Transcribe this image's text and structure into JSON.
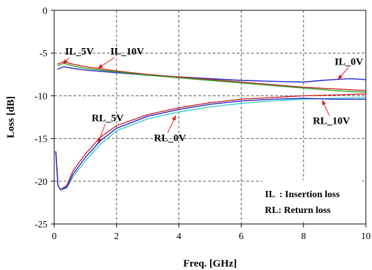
{
  "chart_data": {
    "type": "line",
    "xlabel": "Freq. [GHz]",
    "ylabel": "Loss [dB]",
    "xlim": [
      0,
      10
    ],
    "ylim": [
      -25,
      0
    ],
    "xticks": [
      0,
      2,
      4,
      6,
      8,
      10
    ],
    "yticks": [
      0,
      -5,
      -10,
      -15,
      -20,
      -25
    ],
    "grid": "dashed",
    "series": [
      {
        "name": "IL_0V",
        "color": "#2222cc",
        "x": [
          0.1,
          0.3,
          0.6,
          1,
          2,
          3,
          4,
          5,
          6,
          7,
          8,
          8.6,
          9,
          9.5,
          10
        ],
        "y": [
          -6.9,
          -6.6,
          -6.8,
          -7.0,
          -7.3,
          -7.6,
          -7.8,
          -8.0,
          -8.2,
          -8.3,
          -8.4,
          -8.2,
          -8.1,
          -8.0,
          -8.1
        ]
      },
      {
        "name": "IL_5V",
        "color": "#cc2222",
        "x": [
          0.1,
          0.3,
          0.6,
          1,
          2,
          3,
          4,
          5,
          6,
          7,
          8,
          9,
          10
        ],
        "y": [
          -6.3,
          -6.0,
          -6.3,
          -6.6,
          -7.1,
          -7.5,
          -7.8,
          -8.1,
          -8.4,
          -8.7,
          -9.0,
          -9.2,
          -9.4
        ]
      },
      {
        "name": "IL_10V",
        "color": "#22aa22",
        "x": [
          0.1,
          0.3,
          0.6,
          1,
          2,
          3,
          4,
          5,
          6,
          7,
          8,
          9,
          10
        ],
        "y": [
          -6.5,
          -6.2,
          -6.5,
          -6.8,
          -7.2,
          -7.6,
          -7.9,
          -8.2,
          -8.5,
          -8.8,
          -9.1,
          -9.4,
          -9.6
        ]
      },
      {
        "name": "RL_0V",
        "color": "#33cccc",
        "x": [
          0.05,
          0.12,
          0.2,
          0.4,
          0.6,
          1,
          1.5,
          2,
          3,
          4,
          5,
          6,
          7,
          8,
          9,
          10
        ],
        "y": [
          -16.5,
          -20.5,
          -21.0,
          -20.8,
          -19.5,
          -17.6,
          -15.6,
          -14.1,
          -12.7,
          -11.9,
          -11.3,
          -10.9,
          -10.6,
          -10.4,
          -10.3,
          -10.2
        ]
      },
      {
        "name": "RL_5V",
        "color": "#cc2222",
        "x": [
          0.05,
          0.12,
          0.2,
          0.4,
          0.6,
          1,
          1.5,
          2,
          3,
          4,
          5,
          6,
          7,
          8,
          9,
          10
        ],
        "y": [
          -16.5,
          -20.5,
          -21.0,
          -20.5,
          -18.8,
          -16.8,
          -14.8,
          -13.5,
          -12.2,
          -11.4,
          -10.8,
          -10.4,
          -10.2,
          -10.0,
          -9.9,
          -9.8
        ]
      },
      {
        "name": "RL_10V",
        "color": "#2222cc",
        "x": [
          0.05,
          0.12,
          0.2,
          0.4,
          0.6,
          1,
          1.5,
          2,
          3,
          4,
          5,
          6,
          7,
          8,
          9,
          10
        ],
        "y": [
          -16.5,
          -20.5,
          -21.0,
          -20.7,
          -19.2,
          -17.2,
          -15.2,
          -13.8,
          -12.4,
          -11.6,
          -11.0,
          -10.6,
          -10.4,
          -10.3,
          -10.4,
          -10.4
        ]
      }
    ],
    "annotations": [
      {
        "text": "IL_5V",
        "x": 0.35,
        "y": -5.2
      },
      {
        "text": "IL_10V",
        "x": 1.8,
        "y": -5.2
      },
      {
        "text": "IL_0V",
        "x": 9.0,
        "y": -6.4
      },
      {
        "text": "RL_5V",
        "x": 1.2,
        "y": -13.0
      },
      {
        "text": "RL_0V",
        "x": 3.2,
        "y": -15.3
      },
      {
        "text": "RL_10V",
        "x": 8.3,
        "y": -13.3
      }
    ],
    "legend": {
      "lines": [
        "IL  : Insertion loss",
        "RL: Return loss"
      ],
      "placement": "bottom-right"
    }
  }
}
